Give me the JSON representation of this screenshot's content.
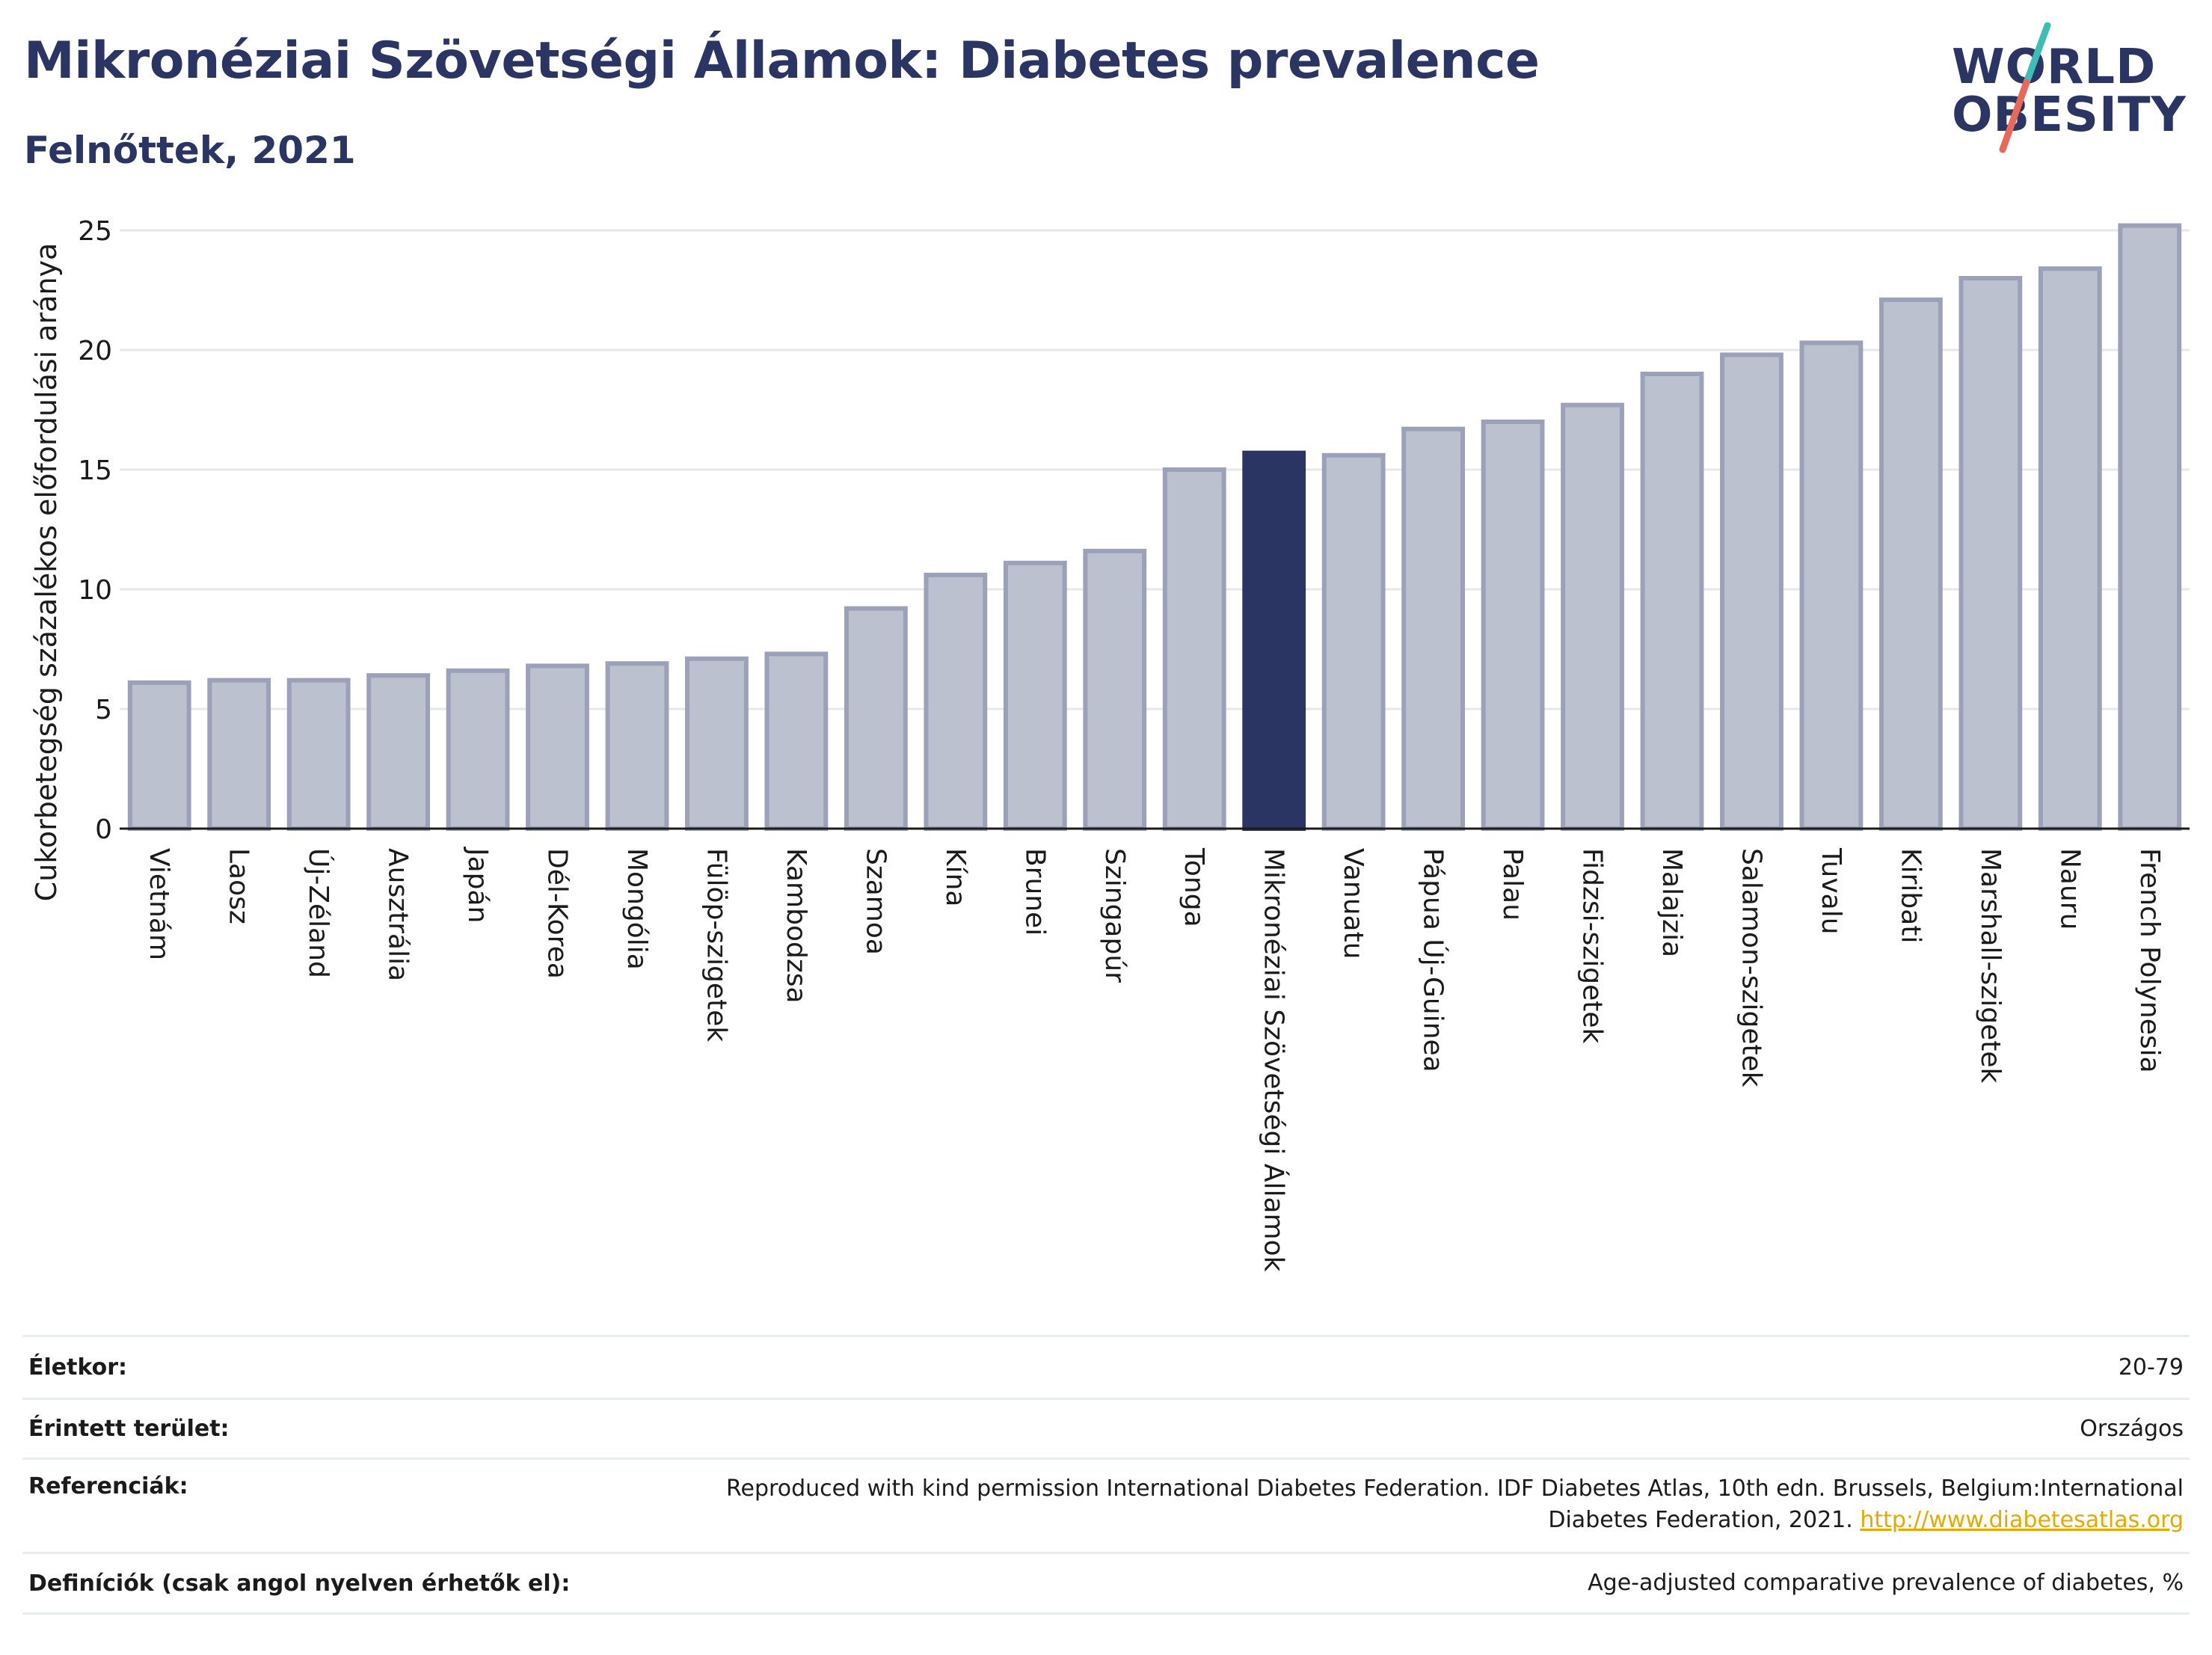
{
  "header": {
    "title": "Mikronéziai Szövetségi Államok: Diabetes prevalence",
    "subtitle": "Felnőttek, 2021"
  },
  "logo": {
    "line1": "WORLD",
    "line2": "OBESITY",
    "slash_colors": [
      "#3dbdb3",
      "#e8685a"
    ]
  },
  "chart_data": {
    "type": "bar",
    "ylabel": "Cukorbetegség százalékos előfordulási aránya",
    "xlabel": "",
    "ylim": [
      0,
      26.5
    ],
    "yticks": [
      0,
      5,
      10,
      15,
      20,
      25
    ],
    "grid": true,
    "highlight": "Mikronéziai Szövetségi Államok",
    "colors": {
      "bar": "#bcc1cf",
      "bar_edge": "#9aa1b8",
      "highlight": "#2b3563",
      "axis": "#1b1b1b",
      "grid": "#e4e8ee"
    },
    "categories": [
      "Vietnám",
      "Laosz",
      "Új-Zéland",
      "Ausztrália",
      "Japán",
      "Dél-Korea",
      "Mongólia",
      "Fülöp-szigetek",
      "Kambodzsa",
      "Szamoa",
      "Kína",
      "Brunei",
      "Szingapúr",
      "Tonga",
      "Mikronéziai Szövetségi Államok",
      "Vanuatu",
      "Pápua Új-Guinea",
      "Palau",
      "Fidzsi-szigetek",
      "Malajzia",
      "Salamon-szigetek",
      "Tuvalu",
      "Kiribati",
      "Marshall-szigetek",
      "Nauru",
      "French Polynesia"
    ],
    "values": [
      6.1,
      6.2,
      6.2,
      6.4,
      6.6,
      6.8,
      6.9,
      7.1,
      7.3,
      9.2,
      10.6,
      11.1,
      11.6,
      15.0,
      15.7,
      15.6,
      16.7,
      17.0,
      17.7,
      19.0,
      19.8,
      20.3,
      22.1,
      23.0,
      23.4,
      25.2
    ]
  },
  "meta": [
    {
      "label": "Életkor:",
      "value": "20-79"
    },
    {
      "label": "Érintett terület:",
      "value": "Országos"
    },
    {
      "label": "Referenciák:",
      "value": "Reproduced with kind permission International Diabetes Federation.  IDF Diabetes Atlas, 10th edn. Brussels, Belgium:International Diabetes Federation, 2021.",
      "link": "http://www.diabetesatlas.org"
    },
    {
      "label": "Definíciók (csak angol nyelven érhetők el):",
      "value": "Age-adjusted comparative prevalence of diabetes, %"
    }
  ]
}
